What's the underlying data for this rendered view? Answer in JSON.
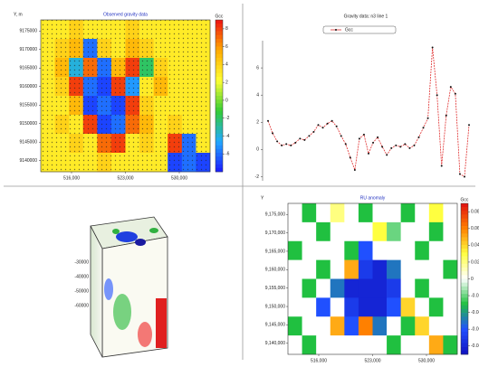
{
  "chart_data": [
    {
      "type": "heatmap",
      "title": "Observed gravity data",
      "y_label": "Y, m",
      "colorbar_label": "Gcc",
      "xlim": [
        512000,
        534000
      ],
      "xticks": [
        {
          "value": 516000,
          "label": "516,000"
        },
        {
          "value": 523000,
          "label": "523,000"
        },
        {
          "value": 530000,
          "label": "530,000"
        }
      ],
      "ylim": [
        9137000,
        9178000
      ],
      "yticks": [
        9175000,
        9170000,
        9165000,
        9160000,
        9155000,
        9150000,
        9145000,
        9140000
      ],
      "zlim": [
        -8,
        9
      ],
      "zticks": [
        8,
        6,
        4,
        2,
        0,
        -2,
        -4,
        -6
      ],
      "colors": [
        "#1a1aff",
        "#22aaff",
        "#33cc33",
        "#ffff33",
        "#ffaa00",
        "#ee1111"
      ],
      "z": [
        [
          3,
          3,
          4,
          3,
          3,
          3,
          4,
          3,
          3,
          3,
          3,
          3
        ],
        [
          3,
          4,
          5,
          -6,
          4,
          3,
          5,
          4,
          3,
          3,
          3,
          3
        ],
        [
          3,
          5,
          -4,
          7,
          -6,
          5,
          8,
          -2,
          4,
          3,
          3,
          3
        ],
        [
          3,
          4,
          8,
          -6,
          -7,
          8,
          -5,
          3,
          5,
          3,
          3,
          3
        ],
        [
          3,
          3,
          5,
          -7,
          -6,
          -7,
          8,
          4,
          3,
          3,
          3,
          3
        ],
        [
          3,
          4,
          3,
          8,
          -7,
          -6,
          7,
          5,
          3,
          4,
          3,
          3
        ],
        [
          3,
          3,
          4,
          3,
          7,
          8,
          3,
          4,
          3,
          8,
          -6,
          3
        ],
        [
          3,
          3,
          3,
          3,
          4,
          3,
          3,
          3,
          3,
          -7,
          -6,
          -7
        ]
      ]
    },
    {
      "type": "line",
      "title": "Gravity data: n3 line 1",
      "ylim": [
        -2.3,
        8
      ],
      "yticks": [
        6,
        4,
        2,
        0,
        -2
      ],
      "series": [
        {
          "name": "Gcc",
          "color": "#e03030",
          "values": [
            2.1,
            1.2,
            0.6,
            0.3,
            0.4,
            0.3,
            0.5,
            0.8,
            0.7,
            1.0,
            1.3,
            1.8,
            1.6,
            1.9,
            2.1,
            1.7,
            1.0,
            0.4,
            -0.6,
            -1.5,
            0.8,
            1.1,
            -0.3,
            0.5,
            0.9,
            0.2,
            -0.4,
            0.1,
            0.3,
            0.2,
            0.4,
            0.1,
            0.3,
            0.9,
            1.6,
            2.3,
            7.5,
            4.0,
            -1.2,
            2.5,
            4.6,
            4.1,
            -1.8,
            -2.0,
            1.8
          ]
        }
      ]
    },
    {
      "type": "heatmap",
      "title": "RU anomaly",
      "y_label": "Y",
      "colorbar_label": "Gcc",
      "xlim": [
        512000,
        534000
      ],
      "xticks": [
        {
          "value": 516000,
          "label": "516,000"
        },
        {
          "value": 523000,
          "label": "523,000"
        },
        {
          "value": 530000,
          "label": "530,000"
        }
      ],
      "ylim": [
        9137000,
        9178000
      ],
      "yticks": [
        {
          "value": 9175000,
          "label": "9,175,000"
        },
        {
          "value": 9170000,
          "label": "9,170,000"
        },
        {
          "value": 9165000,
          "label": "9,165,000"
        },
        {
          "value": 9160000,
          "label": "9,160,000"
        },
        {
          "value": 9155000,
          "label": "9,155,000"
        },
        {
          "value": 9150000,
          "label": "9,150,000"
        },
        {
          "value": 9145000,
          "label": "9,145,000"
        },
        {
          "value": 9140000,
          "label": "9,140,000"
        }
      ],
      "zlim": [
        -0.09,
        0.09
      ],
      "zticks": [
        0.08,
        0.06,
        0.04,
        0.02,
        0,
        -0.02,
        -0.04,
        -0.06,
        -0.08
      ],
      "colors": [
        "#1010c0",
        "#2050ff",
        "#20c040",
        "#ffffff",
        "#ffff40",
        "#ff8000",
        "#e01010"
      ],
      "z": [
        [
          0,
          -0.03,
          0,
          0.02,
          0,
          -0.03,
          0,
          0,
          -0.03,
          0,
          0.03,
          0
        ],
        [
          0,
          0,
          -0.03,
          0,
          0,
          0,
          0.03,
          -0.02,
          0,
          0,
          -0.03,
          0
        ],
        [
          -0.03,
          0,
          0,
          0,
          -0.03,
          -0.06,
          0,
          0,
          0,
          -0.03,
          0,
          0
        ],
        [
          0,
          0,
          -0.03,
          0,
          0.05,
          -0.07,
          -0.08,
          -0.05,
          0,
          0,
          0,
          -0.03
        ],
        [
          0,
          -0.03,
          0,
          -0.05,
          -0.08,
          -0.08,
          -0.08,
          -0.07,
          0,
          -0.03,
          0,
          0
        ],
        [
          0,
          0,
          -0.06,
          0,
          -0.07,
          -0.08,
          -0.08,
          -0.06,
          0.04,
          0,
          -0.03,
          0
        ],
        [
          -0.03,
          0,
          0,
          0.05,
          -0.06,
          0.06,
          -0.05,
          0,
          -0.03,
          0.04,
          0,
          0
        ],
        [
          0,
          -0.03,
          0,
          0,
          0,
          0,
          0,
          -0.03,
          0,
          0,
          0.05,
          -0.03
        ]
      ]
    }
  ],
  "cube": {
    "labels": [
      "-30000",
      "-40000",
      "-50000",
      "-60000"
    ]
  }
}
